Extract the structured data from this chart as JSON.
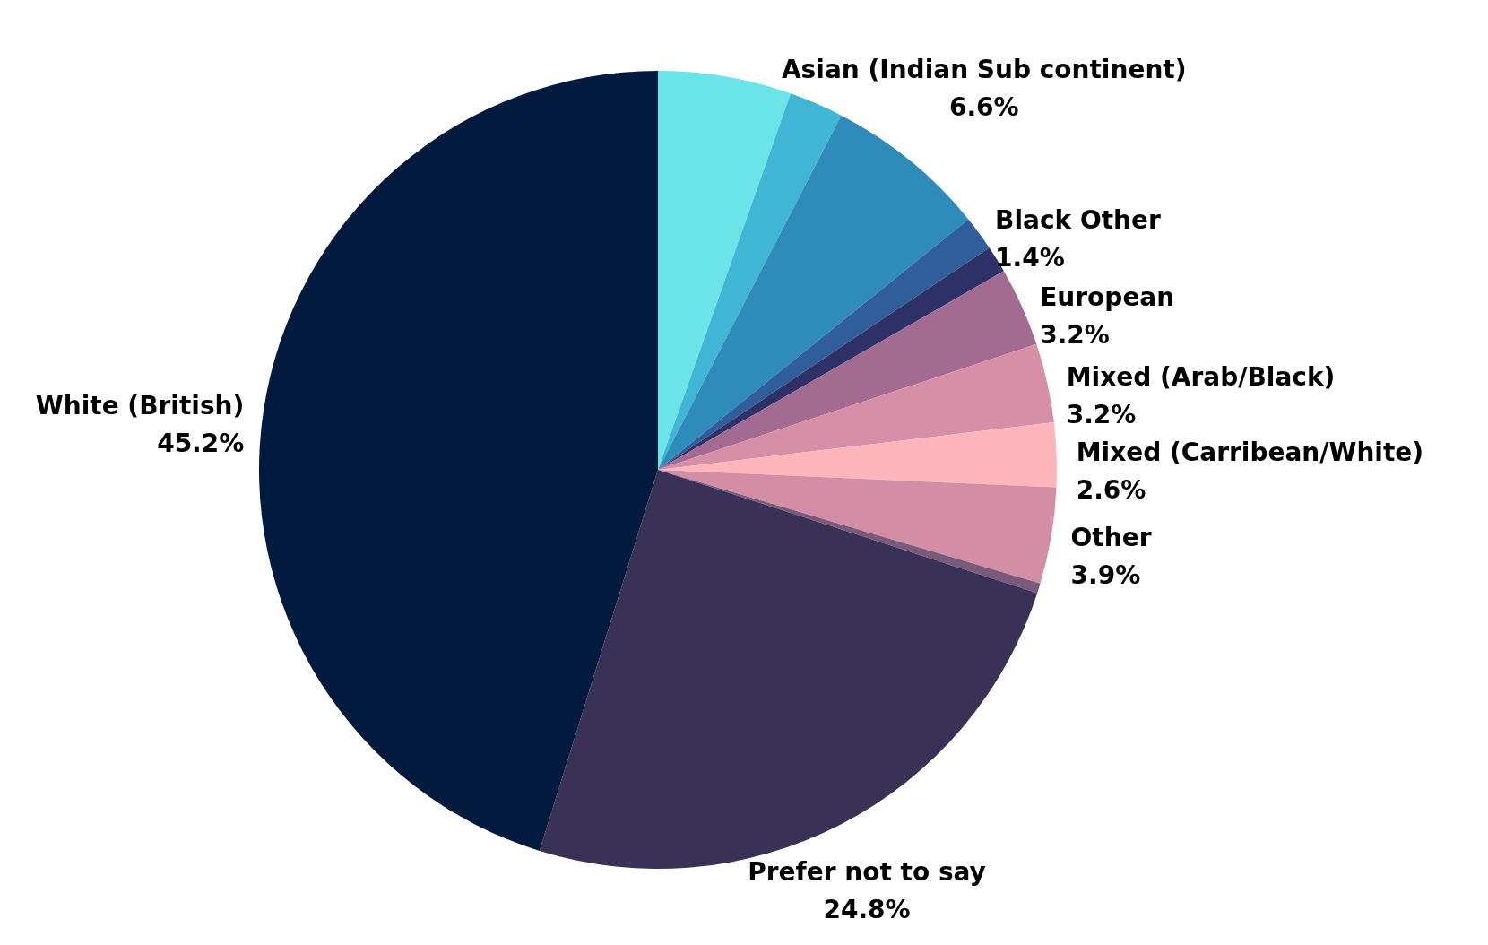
{
  "chart_data": {
    "type": "pie",
    "categories": [
      null,
      null,
      "Asian (Indian Sub continent)",
      "Black Other",
      null,
      "European",
      "Mixed (Arab/Black)",
      "Mixed (Carribean/White)",
      "Other",
      null,
      "Prefer not to say",
      "White (British)"
    ],
    "values": [
      5.4,
      2.2,
      6.6,
      1.4,
      1.1,
      3.2,
      3.2,
      2.6,
      3.9,
      0.4,
      24.8,
      45.2
    ],
    "colors": [
      "#6ae4e8",
      "#41b6d4",
      "#2e8bba",
      "#305e9a",
      "#2e3068",
      "#a46b92",
      "#d58fa7",
      "#ffb6bb",
      "#d38ea6",
      "#7a5a7a",
      "#3a3157",
      "#021a3d"
    ],
    "value_labels": [
      null,
      null,
      "6.6%",
      "1.4%",
      null,
      "3.2%",
      "3.2%",
      "2.6%",
      "3.9%",
      null,
      "24.8%",
      "45.2%"
    ]
  }
}
